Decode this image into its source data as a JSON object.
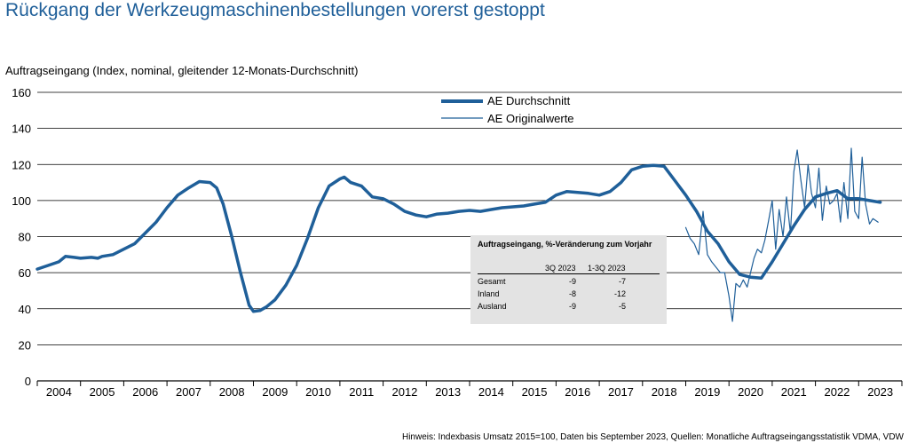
{
  "title": "Rückgang der Werkzeugmaschinenbestellungen vorerst gestoppt",
  "subtitle": "Auftragseingang (Index, nominal, gleitender 12-Monats-Durchschnitt)",
  "footnote": "Hinweis: Indexbasis Umsatz 2015=100, Daten bis September 2023, Quellen: Monatliche Auftragseingangsstatistik VDMA, VDW",
  "colors": {
    "title": "#1f5f99",
    "series": "#1f5f99",
    "grid": "#000000",
    "box": "#e3e3e3"
  },
  "legend": {
    "avg": "AE Durchschnitt",
    "orig": "AE Originalwerte"
  },
  "info_box": {
    "title": "Auftragseingang, %-Veränderung zum Vorjahr",
    "col1": "3Q 2023",
    "col2": "1-3Q 2023",
    "rows": [
      {
        "label": "Gesamt",
        "v1": "-9",
        "v2": "-7"
      },
      {
        "label": "Inland",
        "v1": "-8",
        "v2": "-12"
      },
      {
        "label": "Ausland",
        "v1": "-9",
        "v2": "-5"
      }
    ]
  },
  "chart_data": {
    "type": "line",
    "ylim": [
      0,
      160
    ],
    "yticks": [
      "0",
      "20",
      "40",
      "60",
      "80",
      "100",
      "120",
      "140",
      "160"
    ],
    "xlim": [
      2004.0,
      2024.0
    ],
    "xtick_labels": [
      "2004",
      "2005",
      "2006",
      "2007",
      "2008",
      "2009",
      "2010",
      "2011",
      "2012",
      "2013",
      "2014",
      "2015",
      "2016",
      "2017",
      "2018",
      "2019",
      "2020",
      "2021",
      "2022",
      "2023"
    ],
    "grid": "horizontal",
    "legend_position": "top-center",
    "series": [
      {
        "name": "AE Durchschnitt",
        "style": "thick",
        "points": [
          [
            2004.0,
            62
          ],
          [
            2004.25,
            64
          ],
          [
            2004.5,
            66
          ],
          [
            2004.65,
            69
          ],
          [
            2004.85,
            68.5
          ],
          [
            2005.0,
            68
          ],
          [
            2005.25,
            68.5
          ],
          [
            2005.4,
            68
          ],
          [
            2005.5,
            69
          ],
          [
            2005.75,
            70
          ],
          [
            2006.0,
            73
          ],
          [
            2006.25,
            76
          ],
          [
            2006.5,
            82
          ],
          [
            2006.75,
            88
          ],
          [
            2007.0,
            96
          ],
          [
            2007.25,
            103
          ],
          [
            2007.5,
            107
          ],
          [
            2007.75,
            110.5
          ],
          [
            2008.0,
            110
          ],
          [
            2008.15,
            107
          ],
          [
            2008.3,
            98
          ],
          [
            2008.5,
            80
          ],
          [
            2008.7,
            60
          ],
          [
            2008.9,
            42
          ],
          [
            2009.0,
            38.5
          ],
          [
            2009.15,
            39
          ],
          [
            2009.3,
            41
          ],
          [
            2009.5,
            45
          ],
          [
            2009.75,
            53
          ],
          [
            2010.0,
            64
          ],
          [
            2010.25,
            79
          ],
          [
            2010.5,
            96
          ],
          [
            2010.75,
            108
          ],
          [
            2011.0,
            112
          ],
          [
            2011.1,
            113
          ],
          [
            2011.25,
            110
          ],
          [
            2011.5,
            108
          ],
          [
            2011.75,
            102
          ],
          [
            2012.0,
            101
          ],
          [
            2012.25,
            98
          ],
          [
            2012.5,
            94
          ],
          [
            2012.75,
            92
          ],
          [
            2013.0,
            91
          ],
          [
            2013.25,
            92.5
          ],
          [
            2013.5,
            93
          ],
          [
            2013.75,
            94
          ],
          [
            2014.0,
            94.5
          ],
          [
            2014.25,
            94
          ],
          [
            2014.5,
            95
          ],
          [
            2014.75,
            96
          ],
          [
            2015.0,
            96.5
          ],
          [
            2015.25,
            97
          ],
          [
            2015.5,
            98
          ],
          [
            2015.75,
            99
          ],
          [
            2016.0,
            103
          ],
          [
            2016.25,
            105
          ],
          [
            2016.5,
            104.5
          ],
          [
            2016.75,
            104
          ],
          [
            2017.0,
            103
          ],
          [
            2017.25,
            105
          ],
          [
            2017.5,
            110
          ],
          [
            2017.75,
            117
          ],
          [
            2018.0,
            119
          ],
          [
            2018.25,
            119.5
          ],
          [
            2018.5,
            119
          ],
          [
            2018.75,
            111
          ],
          [
            2019.0,
            103
          ],
          [
            2019.25,
            94
          ],
          [
            2019.5,
            83
          ],
          [
            2019.75,
            76
          ],
          [
            2020.0,
            66
          ],
          [
            2020.25,
            59
          ],
          [
            2020.5,
            57.5
          ],
          [
            2020.75,
            57
          ],
          [
            2021.0,
            66
          ],
          [
            2021.25,
            76
          ],
          [
            2021.5,
            86
          ],
          [
            2021.75,
            95
          ],
          [
            2022.0,
            102
          ],
          [
            2022.25,
            104
          ],
          [
            2022.5,
            105.5
          ],
          [
            2022.75,
            101
          ],
          [
            2023.0,
            101
          ],
          [
            2023.25,
            100
          ],
          [
            2023.5,
            99
          ]
        ]
      },
      {
        "name": "AE Originalwerte",
        "style": "thin",
        "points": [
          [
            2019.0,
            85
          ],
          [
            2019.1,
            79
          ],
          [
            2019.2,
            76
          ],
          [
            2019.3,
            70
          ],
          [
            2019.4,
            94
          ],
          [
            2019.5,
            70
          ],
          [
            2019.6,
            66
          ],
          [
            2019.7,
            63
          ],
          [
            2019.8,
            60
          ],
          [
            2019.9,
            60
          ],
          [
            2020.0,
            47
          ],
          [
            2020.08,
            33
          ],
          [
            2020.16,
            54
          ],
          [
            2020.25,
            52
          ],
          [
            2020.33,
            56
          ],
          [
            2020.42,
            52
          ],
          [
            2020.5,
            60
          ],
          [
            2020.58,
            68
          ],
          [
            2020.66,
            73
          ],
          [
            2020.75,
            71
          ],
          [
            2020.83,
            78
          ],
          [
            2020.91,
            88
          ],
          [
            2021.0,
            100
          ],
          [
            2021.08,
            73
          ],
          [
            2021.16,
            95
          ],
          [
            2021.25,
            80
          ],
          [
            2021.33,
            102
          ],
          [
            2021.42,
            82
          ],
          [
            2021.5,
            116
          ],
          [
            2021.58,
            128
          ],
          [
            2021.66,
            112
          ],
          [
            2021.75,
            96
          ],
          [
            2021.83,
            120
          ],
          [
            2021.91,
            104
          ],
          [
            2022.0,
            96
          ],
          [
            2022.08,
            118
          ],
          [
            2022.16,
            89
          ],
          [
            2022.25,
            108
          ],
          [
            2022.33,
            98
          ],
          [
            2022.42,
            100
          ],
          [
            2022.5,
            104
          ],
          [
            2022.58,
            88
          ],
          [
            2022.66,
            110
          ],
          [
            2022.75,
            90
          ],
          [
            2022.83,
            129
          ],
          [
            2022.91,
            94
          ],
          [
            2023.0,
            90
          ],
          [
            2023.08,
            124
          ],
          [
            2023.16,
            98
          ],
          [
            2023.25,
            87
          ],
          [
            2023.33,
            90
          ],
          [
            2023.45,
            88
          ]
        ]
      }
    ]
  }
}
